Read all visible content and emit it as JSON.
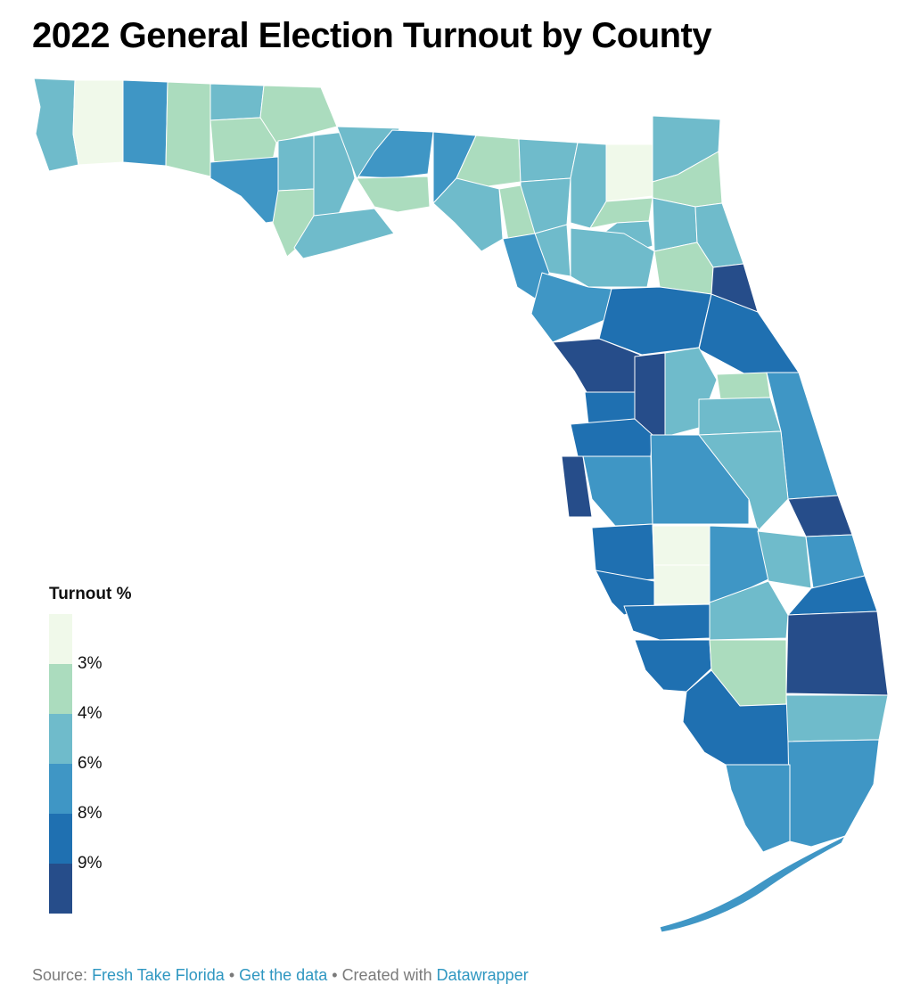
{
  "title": "2022 General Election Turnout by County",
  "legend": {
    "title": "Turnout %",
    "breaks": [
      "3%",
      "4%",
      "6%",
      "8%",
      "9%"
    ],
    "colors": [
      "#f0f9ea",
      "#abdcbe",
      "#6fbbcb",
      "#3f96c5",
      "#1f70b1",
      "#264d8a"
    ]
  },
  "footer": {
    "source_label": "Source:",
    "source_link": "Fresh Take Florida",
    "separator": "•",
    "data_link": "Get the data",
    "created_label": "Created with",
    "created_link": "Datawrapper"
  },
  "map_fill_classes": {
    "c0": "#f0f9ea",
    "c1": "#abdcbe",
    "c2": "#6fbbcb",
    "c3": "#3f96c5",
    "c4": "#1f70b1",
    "c5": "#264d8a"
  }
}
